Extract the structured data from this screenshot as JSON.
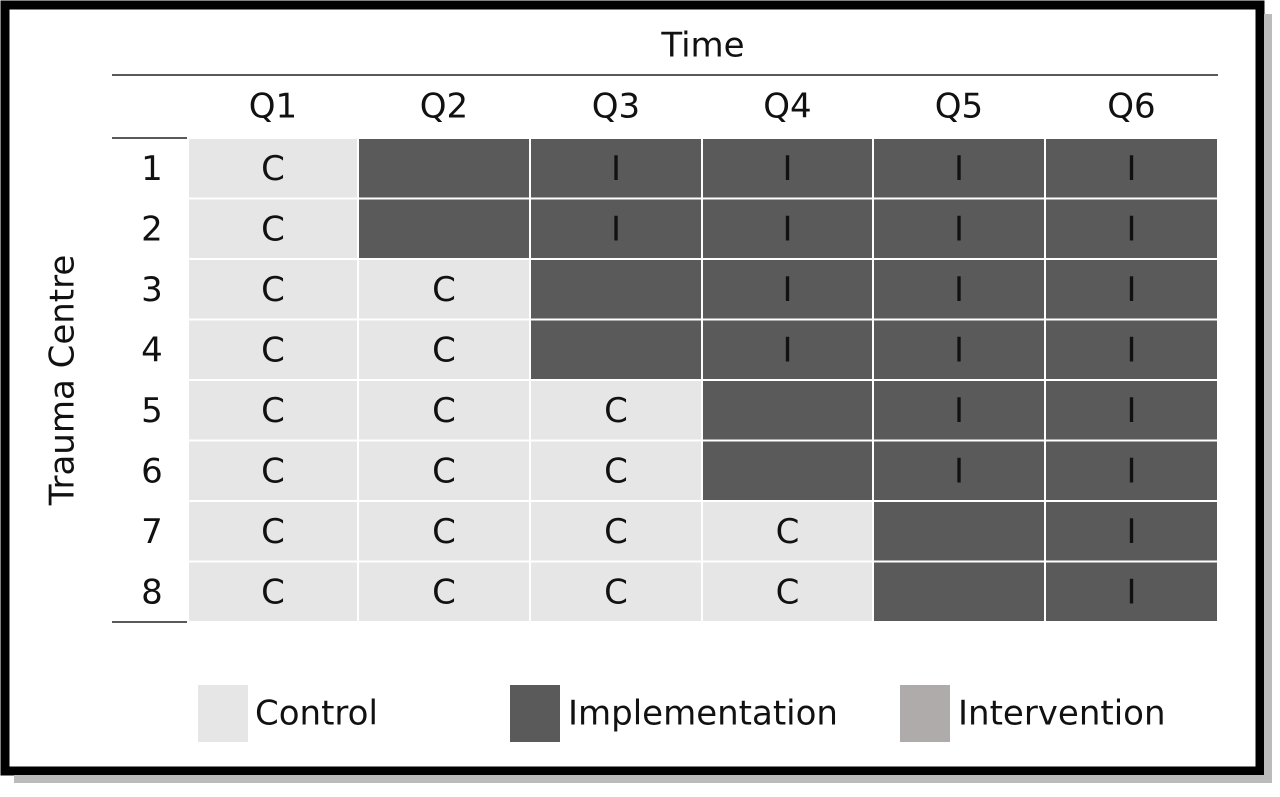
{
  "header": {
    "title": "Time"
  },
  "side_label": "Trauma Centre",
  "columns": [
    "Q1",
    "Q2",
    "Q3",
    "Q4",
    "Q5",
    "Q6"
  ],
  "rows": [
    {
      "label": "1",
      "cells": [
        "C",
        null,
        "I",
        "I",
        "I",
        "I"
      ]
    },
    {
      "label": "2",
      "cells": [
        "C",
        null,
        "I",
        "I",
        "I",
        "I"
      ]
    },
    {
      "label": "3",
      "cells": [
        "C",
        "C",
        null,
        "I",
        "I",
        "I"
      ]
    },
    {
      "label": "4",
      "cells": [
        "C",
        "C",
        null,
        "I",
        "I",
        "I"
      ]
    },
    {
      "label": "5",
      "cells": [
        "C",
        "C",
        "C",
        null,
        "I",
        "I"
      ]
    },
    {
      "label": "6",
      "cells": [
        "C",
        "C",
        "C",
        null,
        "I",
        "I"
      ]
    },
    {
      "label": "7",
      "cells": [
        "C",
        "C",
        "C",
        "C",
        null,
        "I"
      ]
    },
    {
      "label": "8",
      "cells": [
        "C",
        "C",
        "C",
        "C",
        null,
        "I"
      ]
    }
  ],
  "legend": [
    {
      "label": "Control",
      "color": "#e6e6e6"
    },
    {
      "label": "Implementation",
      "color": "#5a5a5a"
    },
    {
      "label": "Intervention",
      "color": "#afabab"
    }
  ]
}
